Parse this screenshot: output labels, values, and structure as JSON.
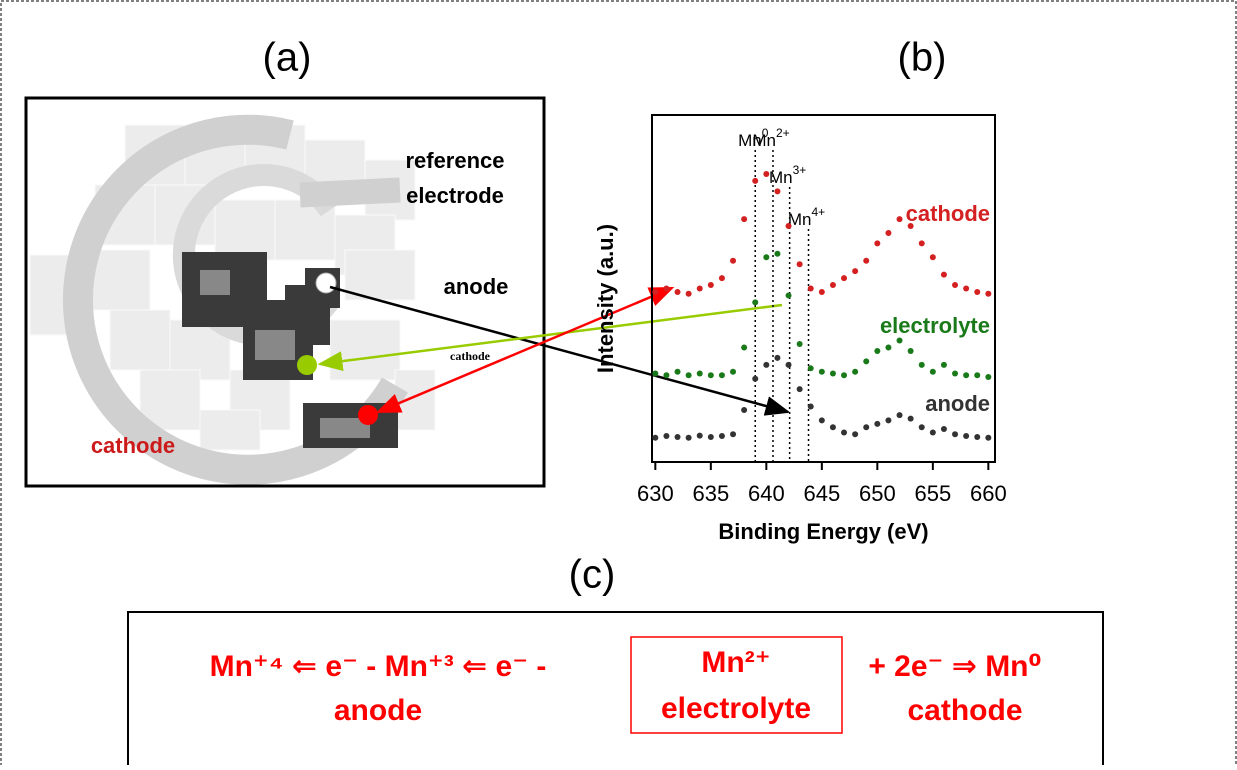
{
  "panels": {
    "a": "(a)",
    "b": "(b)",
    "c": "(c)"
  },
  "image_labels": {
    "reference_electrode": [
      "reference",
      "electrode"
    ],
    "anode": "anode",
    "cathode": "cathode",
    "arrow_label": "cathode"
  },
  "chart_data": {
    "type": "scatter",
    "xlabel": "Binding Energy (eV)",
    "ylabel": "Intensity (a.u.)",
    "xlim": [
      629.7,
      660.6
    ],
    "xticks": [
      630,
      635,
      640,
      645,
      650,
      655,
      660
    ],
    "ylim": [
      0,
      10
    ],
    "x": [
      630,
      631,
      632,
      633,
      634,
      635,
      636,
      637,
      638,
      639,
      640,
      641,
      642,
      643,
      644,
      645,
      646,
      647,
      648,
      649,
      650,
      651,
      652,
      653,
      654,
      655,
      656,
      657,
      658,
      659,
      660
    ],
    "series": [
      {
        "name": "cathode",
        "color": "#d42020",
        "values": [
          4.9,
          5.0,
          4.9,
          4.85,
          5.0,
          5.1,
          5.3,
          5.8,
          7.0,
          8.1,
          8.3,
          7.8,
          6.8,
          5.7,
          5.0,
          4.9,
          5.1,
          5.3,
          5.5,
          5.8,
          6.3,
          6.6,
          7.0,
          6.8,
          6.3,
          5.9,
          5.4,
          5.1,
          5.0,
          4.9,
          4.85
        ]
      },
      {
        "name": "electrolyte",
        "color": "#1a7a1a",
        "values": [
          2.55,
          2.5,
          2.6,
          2.5,
          2.55,
          2.5,
          2.5,
          2.6,
          3.3,
          4.6,
          5.9,
          6.0,
          4.8,
          3.4,
          2.7,
          2.6,
          2.55,
          2.5,
          2.6,
          2.9,
          3.2,
          3.3,
          3.5,
          3.2,
          2.8,
          2.6,
          2.8,
          2.55,
          2.5,
          2.5,
          2.45
        ]
      },
      {
        "name": "anode",
        "color": "#333333",
        "values": [
          0.7,
          0.75,
          0.72,
          0.7,
          0.76,
          0.72,
          0.75,
          0.8,
          1.5,
          2.4,
          2.8,
          3.0,
          2.8,
          2.1,
          1.6,
          1.2,
          1.0,
          0.85,
          0.8,
          1.0,
          1.1,
          1.2,
          1.35,
          1.25,
          1.0,
          0.85,
          0.95,
          0.8,
          0.75,
          0.72,
          0.7
        ]
      }
    ],
    "reference_lines": [
      {
        "x": 639.0,
        "base": "Mn",
        "sup": "0"
      },
      {
        "x": 640.6,
        "base": "Mn",
        "sup": "2+"
      },
      {
        "x": 642.1,
        "base": "Mn",
        "sup": "3+"
      },
      {
        "x": 643.8,
        "base": "Mn",
        "sup": "4+"
      }
    ]
  },
  "equation": {
    "left": "Mn⁺⁴ ⇐ e⁻ - Mn⁺³ ⇐ e⁻ -",
    "left_sub": "anode",
    "boxed": [
      "Mn²⁺",
      "electrolyte"
    ],
    "right": "+ 2e⁻ ⇒ Mn⁰",
    "right_sub": "cathode"
  }
}
